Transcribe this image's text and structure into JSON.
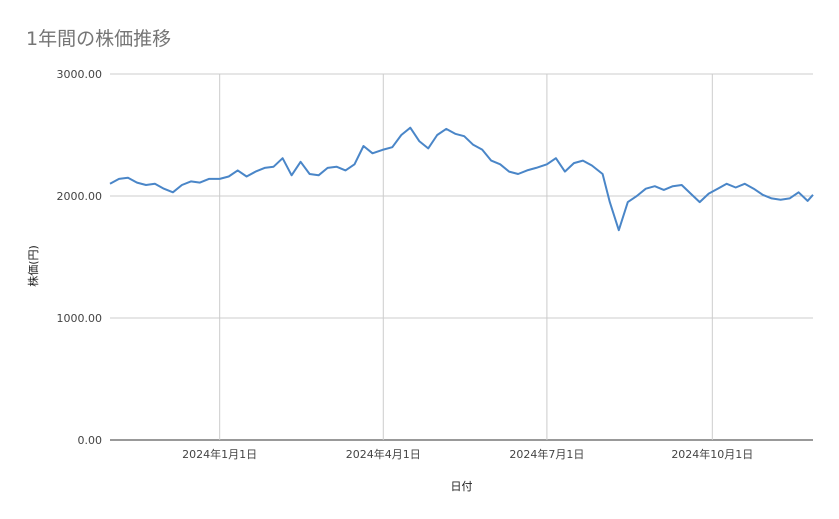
{
  "chart_data": {
    "type": "line",
    "title": "1年間の株価推移",
    "xlabel": "日付",
    "ylabel": "株価(円)",
    "ylim": [
      0,
      3000
    ],
    "y_ticks": [
      "0.00",
      "1000.00",
      "2000.00",
      "3000.00"
    ],
    "x_range": [
      "2023-11-01",
      "2024-11-26"
    ],
    "x_ticks": [
      {
        "date": "2024-01-01",
        "label": "2024年1月1日"
      },
      {
        "date": "2024-04-01",
        "label": "2024年4月1日"
      },
      {
        "date": "2024-07-01",
        "label": "2024年7月1日"
      },
      {
        "date": "2024-10-01",
        "label": "2024年10月1日"
      }
    ],
    "grid": true,
    "legend": "none",
    "line_color": "#4a86c8",
    "series": [
      {
        "x": [
          "2023-11-01",
          "2023-11-06",
          "2023-11-11",
          "2023-11-16",
          "2023-11-21",
          "2023-11-26",
          "2023-12-01",
          "2023-12-06",
          "2023-12-11",
          "2023-12-16",
          "2023-12-21",
          "2023-12-26",
          "2024-01-01",
          "2024-01-06",
          "2024-01-11",
          "2024-01-16",
          "2024-01-21",
          "2024-01-26",
          "2024-01-31",
          "2024-02-05",
          "2024-02-10",
          "2024-02-15",
          "2024-02-20",
          "2024-02-25",
          "2024-03-01",
          "2024-03-06",
          "2024-03-11",
          "2024-03-16",
          "2024-03-21",
          "2024-03-26",
          "2024-04-01",
          "2024-04-06",
          "2024-04-11",
          "2024-04-16",
          "2024-04-21",
          "2024-04-26",
          "2024-05-01",
          "2024-05-06",
          "2024-05-11",
          "2024-05-16",
          "2024-05-21",
          "2024-05-26",
          "2024-05-31",
          "2024-06-05",
          "2024-06-10",
          "2024-06-15",
          "2024-06-20",
          "2024-06-25",
          "2024-07-01",
          "2024-07-06",
          "2024-07-11",
          "2024-07-16",
          "2024-07-21",
          "2024-07-26",
          "2024-08-01",
          "2024-08-05",
          "2024-08-10",
          "2024-08-15",
          "2024-08-20",
          "2024-08-25",
          "2024-08-30",
          "2024-09-04",
          "2024-09-09",
          "2024-09-14",
          "2024-09-19",
          "2024-09-24",
          "2024-09-29",
          "2024-10-04",
          "2024-10-09",
          "2024-10-14",
          "2024-10-19",
          "2024-10-24",
          "2024-10-29",
          "2024-11-03",
          "2024-11-08",
          "2024-11-13",
          "2024-11-18",
          "2024-11-23",
          "2024-11-26"
        ],
        "values": [
          2100,
          2140,
          2150,
          2110,
          2090,
          2100,
          2060,
          2030,
          2090,
          2120,
          2110,
          2140,
          2140,
          2160,
          2210,
          2160,
          2200,
          2230,
          2240,
          2310,
          2170,
          2280,
          2180,
          2170,
          2230,
          2240,
          2210,
          2260,
          2410,
          2350,
          2380,
          2400,
          2500,
          2560,
          2450,
          2390,
          2500,
          2550,
          2510,
          2490,
          2420,
          2380,
          2290,
          2260,
          2200,
          2180,
          2210,
          2230,
          2260,
          2310,
          2200,
          2270,
          2290,
          2250,
          2180,
          1950,
          1720,
          1950,
          2000,
          2060,
          2080,
          2050,
          2080,
          2090,
          2020,
          1950,
          2020,
          2060,
          2100,
          2070,
          2100,
          2060,
          2010,
          1980,
          1970,
          1980,
          2030,
          1960,
          2010
        ]
      }
    ]
  }
}
